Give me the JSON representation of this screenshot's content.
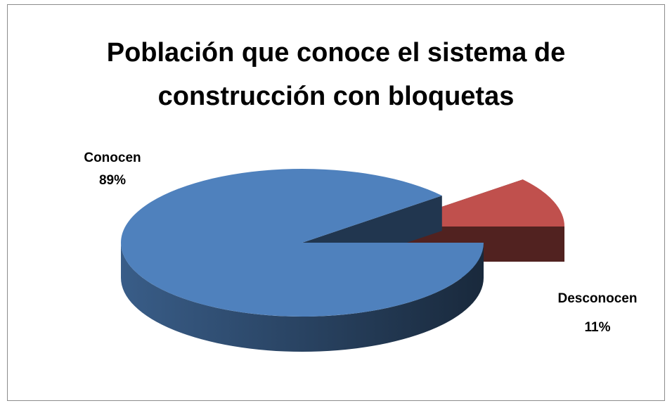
{
  "chart_data": {
    "type": "pie",
    "title": "Población que conoce el sistema de construcción con bloquetas",
    "categories": [
      "Conocen",
      "Desconocen"
    ],
    "values": [
      89,
      11
    ],
    "value_labels": [
      "89%",
      "11%"
    ],
    "colors": [
      "#4f81bd",
      "#c0504d"
    ]
  }
}
